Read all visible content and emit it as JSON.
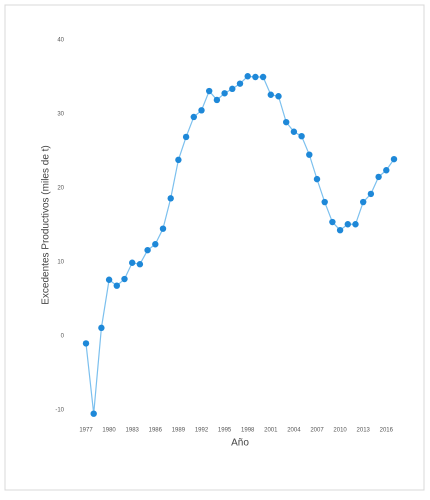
{
  "chart_data": {
    "type": "line",
    "xlabel": "Año",
    "ylabel": "Excedentes Productivos (miles de t)",
    "x": [
      1977,
      1978,
      1979,
      1980,
      1981,
      1982,
      1983,
      1984,
      1985,
      1986,
      1987,
      1988,
      1989,
      1990,
      1991,
      1992,
      1993,
      1994,
      1995,
      1996,
      1997,
      1998,
      1999,
      2000,
      2001,
      2002,
      2003,
      2004,
      2005,
      2006,
      2007,
      2008,
      2009,
      2010,
      2011,
      2012,
      2013,
      2014,
      2015,
      2016,
      2017
    ],
    "series": [
      {
        "color": "#1e88d8",
        "values": [
          -1.0,
          -10.5,
          1.1,
          7.6,
          6.8,
          7.7,
          9.9,
          9.7,
          11.6,
          12.4,
          14.5,
          18.6,
          23.8,
          26.9,
          29.6,
          30.5,
          33.1,
          31.9,
          32.8,
          33.4,
          34.1,
          35.1,
          35.0,
          35.0,
          32.6,
          32.4,
          28.9,
          27.6,
          27.0,
          24.5,
          21.2,
          18.1,
          15.4,
          14.3,
          15.1,
          15.1,
          18.1,
          19.2,
          21.5,
          22.4,
          23.9
        ]
      }
    ],
    "xlim": [
      1976,
      2018
    ],
    "xticks": [
      1977,
      1980,
      1983,
      1986,
      1989,
      1992,
      1995,
      1998,
      2001,
      2004,
      2007,
      2010,
      2013,
      2016
    ],
    "ylim": [
      -12,
      42
    ],
    "yticks": [
      40,
      30,
      20,
      10,
      0,
      -10
    ]
  }
}
